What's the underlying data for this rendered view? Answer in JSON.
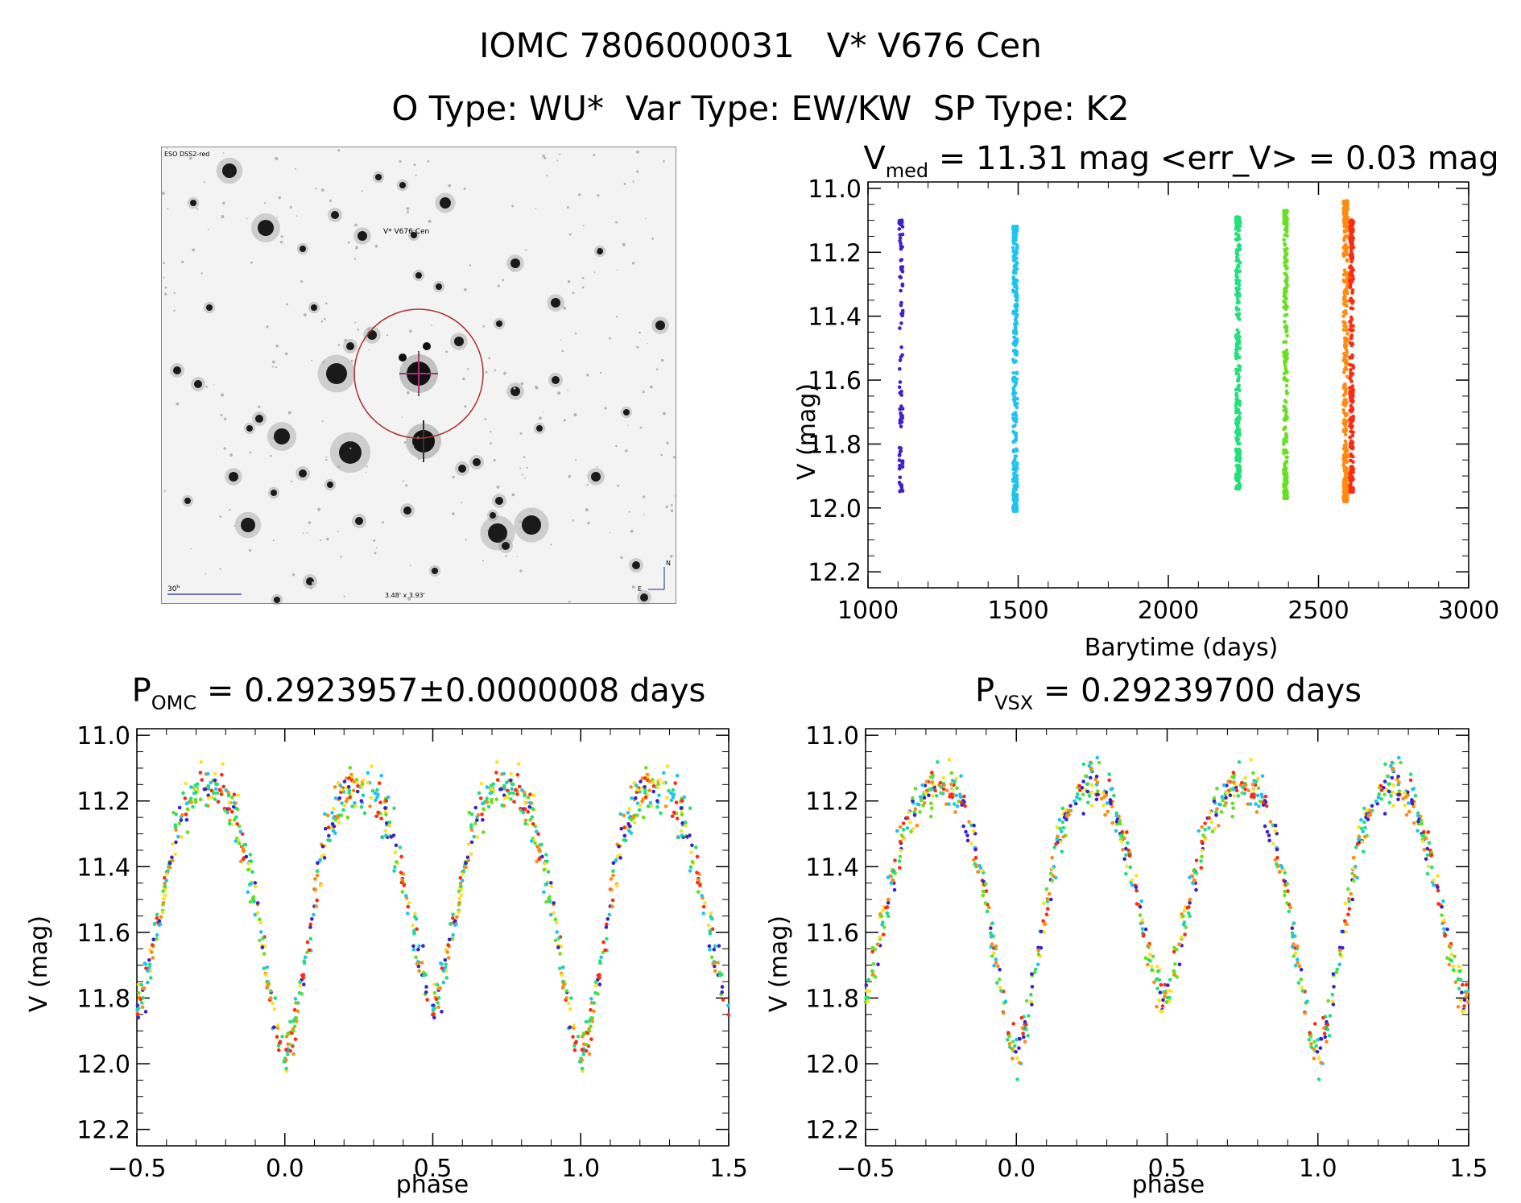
{
  "header": {
    "line1": "IOMC 7806000031   V* V676 Cen",
    "line2": "O Type: WU*  Var Type: EW/KW  SP Type: K2"
  },
  "finder": {
    "survey_label": "ESO DSS2-red",
    "target_label": "V* V676 Cen",
    "scale_label": "30\"",
    "fov_label": "3.48' x 3.93'",
    "north_label": "N",
    "east_label": "E",
    "colors": {
      "circle": "#b03030",
      "crosshair": "#b0307a",
      "text_red": "#c03030",
      "text_blue": "#1a2a9a"
    }
  },
  "chart_data": [
    {
      "id": "lightcurve",
      "type": "scatter",
      "title_prefix": "V",
      "title_sub": "med",
      "title_rest": " = 11.31 mag <err_V> = 0.03 mag",
      "xlabel": "Barytime (days)",
      "ylabel": "V (mag)",
      "xlim": [
        1000,
        3000
      ],
      "ylim": [
        12.25,
        10.98
      ],
      "xticks": [
        1000,
        1500,
        2000,
        2500,
        3000
      ],
      "yticks": [
        11.0,
        11.2,
        11.4,
        11.6,
        11.8,
        12.0,
        12.2
      ],
      "series": [
        {
          "x": 1110,
          "width": 12,
          "ymin": 11.1,
          "ymax": 11.95,
          "count": 90,
          "color": "#3a22cc"
        },
        {
          "x": 1490,
          "width": 14,
          "ymin": 11.12,
          "ymax": 12.01,
          "count": 320,
          "color": "#1ec4ee"
        },
        {
          "x": 2232,
          "width": 14,
          "ymin": 11.09,
          "ymax": 11.94,
          "count": 280,
          "color": "#22e07a"
        },
        {
          "x": 2390,
          "width": 12,
          "ymin": 11.07,
          "ymax": 11.97,
          "count": 240,
          "color": "#66e020"
        },
        {
          "x": 2590,
          "width": 14,
          "ymin": 11.04,
          "ymax": 11.98,
          "count": 320,
          "color": "#ff8a10"
        },
        {
          "x": 2610,
          "width": 12,
          "ymin": 11.1,
          "ymax": 11.95,
          "count": 260,
          "color": "#ff2a10"
        }
      ]
    },
    {
      "id": "phase_omc",
      "type": "scatter",
      "title_prefix": "P",
      "title_sub": "OMC",
      "title_rest": " = 0.2923957±0.0000008 days",
      "xlabel": "phase",
      "ylabel": "V (mag)",
      "xlim": [
        -0.5,
        1.5
      ],
      "ylim": [
        12.25,
        10.98
      ],
      "xticks": [
        -0.5,
        0.0,
        0.5,
        1.0,
        1.5
      ],
      "xtick_labels": [
        "−0.5",
        "0.0",
        "0.5",
        "1.0",
        "1.5"
      ],
      "yticks": [
        11.0,
        11.2,
        11.4,
        11.6,
        11.8,
        12.0,
        12.2
      ],
      "curve": {
        "max_mag": 11.15,
        "primary_min": 11.98,
        "secondary_min": 11.82,
        "primary_phase": 0.0,
        "secondary_phase": 0.5,
        "points_per_cycle": 500
      },
      "colors": [
        "#ff2a10",
        "#ff8a10",
        "#66e020",
        "#22e07a",
        "#1ec4ee",
        "#ffe020",
        "#3a22cc"
      ]
    },
    {
      "id": "phase_vsx",
      "type": "scatter",
      "title_prefix": "P",
      "title_sub": "VSX",
      "title_rest": " = 0.29239700 days",
      "xlabel": "phase",
      "ylabel": "V (mag)",
      "xlim": [
        -0.5,
        1.5
      ],
      "ylim": [
        12.25,
        10.98
      ],
      "xticks": [
        -0.5,
        0.0,
        0.5,
        1.0,
        1.5
      ],
      "xtick_labels": [
        "−0.5",
        "0.0",
        "0.5",
        "1.0",
        "1.5"
      ],
      "yticks": [
        11.0,
        11.2,
        11.4,
        11.6,
        11.8,
        12.0,
        12.2
      ],
      "curve": {
        "max_mag": 11.15,
        "primary_min": 11.98,
        "secondary_min": 11.82,
        "primary_phase": 0.0,
        "secondary_phase": 0.48,
        "points_per_cycle": 500
      },
      "colors": [
        "#ff2a10",
        "#ff8a10",
        "#66e020",
        "#22e07a",
        "#1ec4ee",
        "#ffe020",
        "#3a22cc"
      ]
    }
  ]
}
